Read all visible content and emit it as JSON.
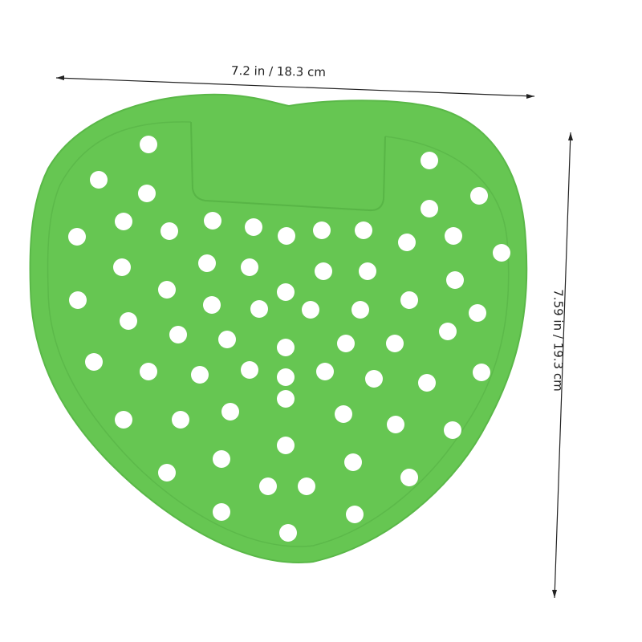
{
  "dimensions": {
    "width_label": "7.2 in / 18.3 cm",
    "height_label": "7.59 in / 19.3 cm"
  },
  "product": {
    "name": "urinal screen",
    "color": "#66c652",
    "edge_color": "#5ab848"
  }
}
